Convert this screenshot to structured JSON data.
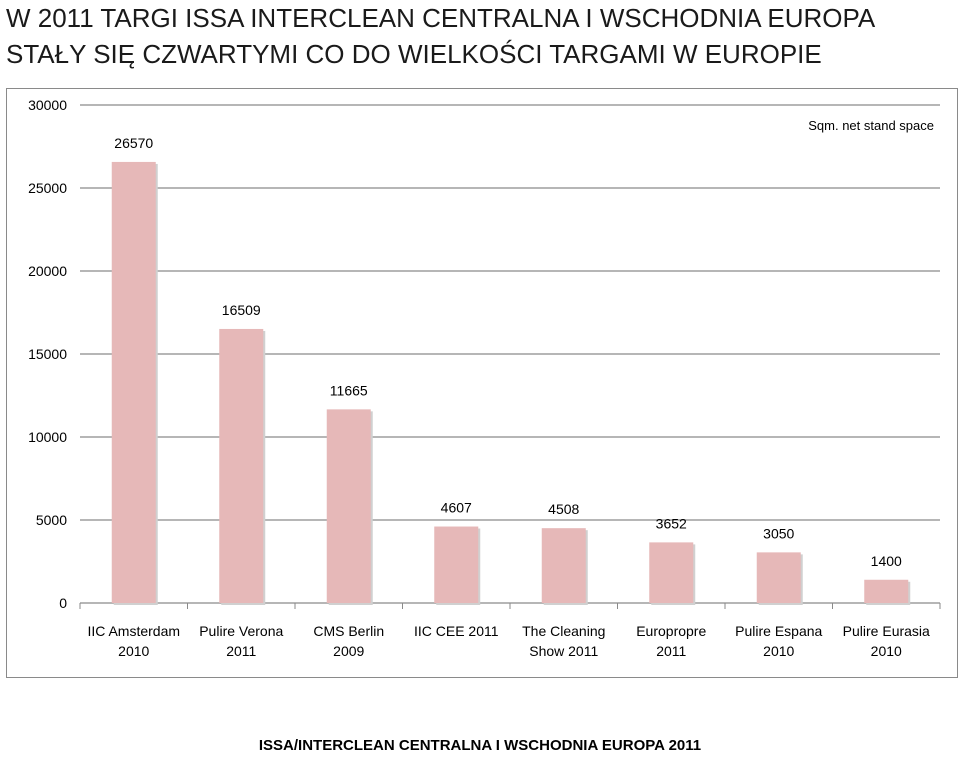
{
  "title_line1": "W 2011 TARGI ISSA INTERCLEAN CENTRALNA I WSCHODNIA EUROPA",
  "title_line2": "STAŁY SIĘ CZWARTYMI CO DO WIELKOŚCI TARGAMI W EUROPIE",
  "footer": "ISSA/INTERCLEAN CENTRALNA I WSCHODNIA EUROPA 2011",
  "chart_data": {
    "type": "bar",
    "categories": [
      [
        "IIC Amsterdam",
        "2010"
      ],
      [
        "Pulire Verona",
        "2011"
      ],
      [
        "CMS Berlin",
        "2009"
      ],
      [
        "IIC CEE 2011"
      ],
      [
        "The Cleaning",
        "Show 2011"
      ],
      [
        "Europropre",
        "2011"
      ],
      [
        "Pulire Espana",
        "2010"
      ],
      [
        "Pulire Eurasia",
        "2010"
      ]
    ],
    "series": [
      {
        "name": "Sqm. net stand space",
        "values": [
          26570,
          16509,
          11665,
          4607,
          4508,
          3652,
          3050,
          1400
        ]
      }
    ],
    "ylim": [
      0,
      30000
    ],
    "yticks": [
      0,
      5000,
      10000,
      15000,
      20000,
      25000,
      30000
    ],
    "grid": true,
    "legend_position": "top-right",
    "bar_color": "#e6b8b8",
    "grid_color": "#8a8a8a"
  }
}
